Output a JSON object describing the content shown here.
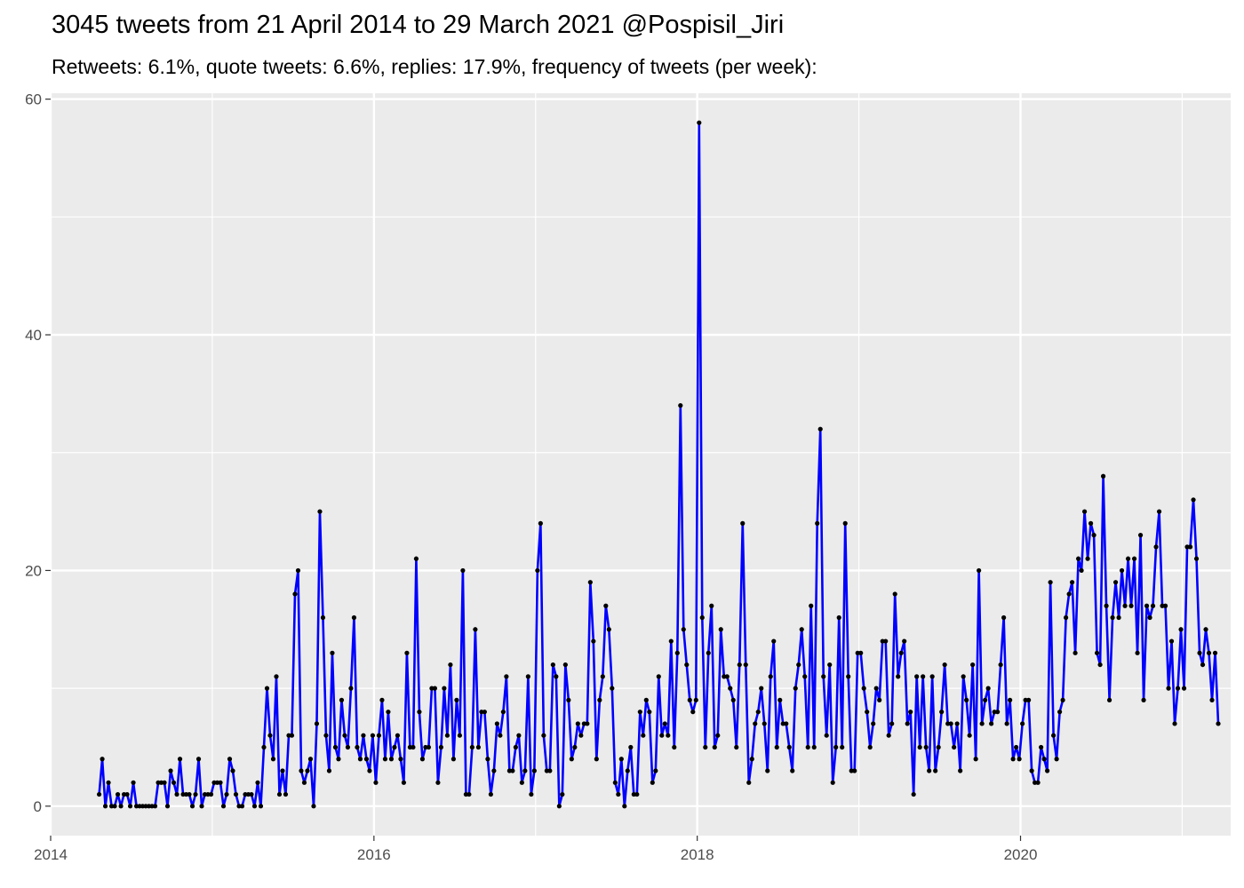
{
  "chart_data": {
    "type": "line",
    "title": "3045 tweets from 21 April 2014 to 29 March 2021 @Pospisil_Jiri",
    "subtitle": "Retweets: 6.1%, quote tweets: 6.6%, replies: 17.9%, frequency of tweets (per week):",
    "xlabel": "",
    "ylabel": "",
    "xlim": [
      2014.0,
      2021.3
    ],
    "ylim": [
      -2.5,
      60.5
    ],
    "x_ticks": [
      2014,
      2016,
      2018,
      2020
    ],
    "y_ticks": [
      0,
      20,
      40,
      60
    ],
    "grid": true,
    "line_color": "#0000ff",
    "point_color": "#000000",
    "panel_color": "#ebebeb",
    "series": [
      {
        "x_start": 2014.3,
        "x_step": 0.019231,
        "values": [
          1,
          4,
          0,
          2,
          0,
          0,
          1,
          0,
          1,
          1,
          0,
          2,
          0,
          0,
          0,
          0,
          0,
          0,
          0,
          2,
          2,
          2,
          0,
          3,
          2,
          1,
          4,
          1,
          1,
          1,
          0,
          1,
          4,
          0,
          1,
          1,
          1,
          2,
          2,
          2,
          0,
          1,
          4,
          3,
          1,
          0,
          0,
          1,
          1,
          1,
          0,
          2,
          0,
          5,
          10,
          6,
          4,
          11,
          1,
          3,
          1,
          6,
          6,
          18,
          20,
          3,
          2,
          3,
          4,
          0,
          7,
          25,
          16,
          6,
          3,
          13,
          5,
          4,
          9,
          6,
          5,
          10,
          16,
          5,
          4,
          6,
          4,
          3,
          6,
          2,
          6,
          9,
          4,
          8,
          4,
          5,
          6,
          4,
          2,
          13,
          5,
          5,
          21,
          8,
          4,
          5,
          5,
          10,
          10,
          2,
          5,
          10,
          6,
          12,
          4,
          9,
          6,
          20,
          1,
          1,
          5,
          15,
          5,
          8,
          8,
          4,
          1,
          3,
          7,
          6,
          8,
          11,
          3,
          3,
          5,
          6,
          2,
          3,
          11,
          1,
          3,
          20,
          24,
          6,
          3,
          3,
          12,
          11,
          0,
          1,
          12,
          9,
          4,
          5,
          7,
          6,
          7,
          7,
          19,
          14,
          4,
          9,
          11,
          17,
          15,
          10,
          2,
          1,
          4,
          0,
          3,
          5,
          1,
          1,
          8,
          6,
          9,
          8,
          2,
          3,
          11,
          6,
          7,
          6,
          14,
          5,
          13,
          34,
          15,
          12,
          9,
          8,
          9,
          58,
          16,
          5,
          13,
          17,
          5,
          6,
          15,
          11,
          11,
          10,
          9,
          5,
          12,
          24,
          12,
          2,
          4,
          7,
          8,
          10,
          7,
          3,
          11,
          14,
          5,
          9,
          7,
          7,
          5,
          3,
          10,
          12,
          15,
          11,
          5,
          17,
          5,
          24,
          32,
          11,
          6,
          12,
          2,
          5,
          16,
          5,
          24,
          11,
          3,
          3,
          13,
          13,
          10,
          8,
          5,
          7,
          10,
          9,
          14,
          14,
          6,
          7,
          18,
          11,
          13,
          14,
          7,
          8,
          1,
          11,
          5,
          11,
          5,
          3,
          11,
          3,
          5,
          8,
          12,
          7,
          7,
          5,
          7,
          3,
          11,
          9,
          6,
          12,
          4,
          20,
          7,
          9,
          10,
          7,
          8,
          8,
          12,
          16,
          7,
          9,
          4,
          5,
          4,
          7,
          9,
          9,
          3,
          2,
          2,
          5,
          4,
          3,
          19,
          6,
          4,
          8,
          9,
          16,
          18,
          19,
          13,
          21,
          20,
          25,
          21,
          24,
          23,
          13,
          12,
          28,
          17,
          9,
          16,
          19,
          16,
          20,
          17,
          21,
          17,
          21,
          13,
          23,
          9,
          17,
          16,
          17,
          22,
          25,
          17,
          17,
          10,
          14,
          7,
          10,
          15,
          10,
          22,
          22,
          26,
          21,
          13,
          12,
          15,
          13,
          9,
          13,
          7
        ]
      }
    ]
  }
}
